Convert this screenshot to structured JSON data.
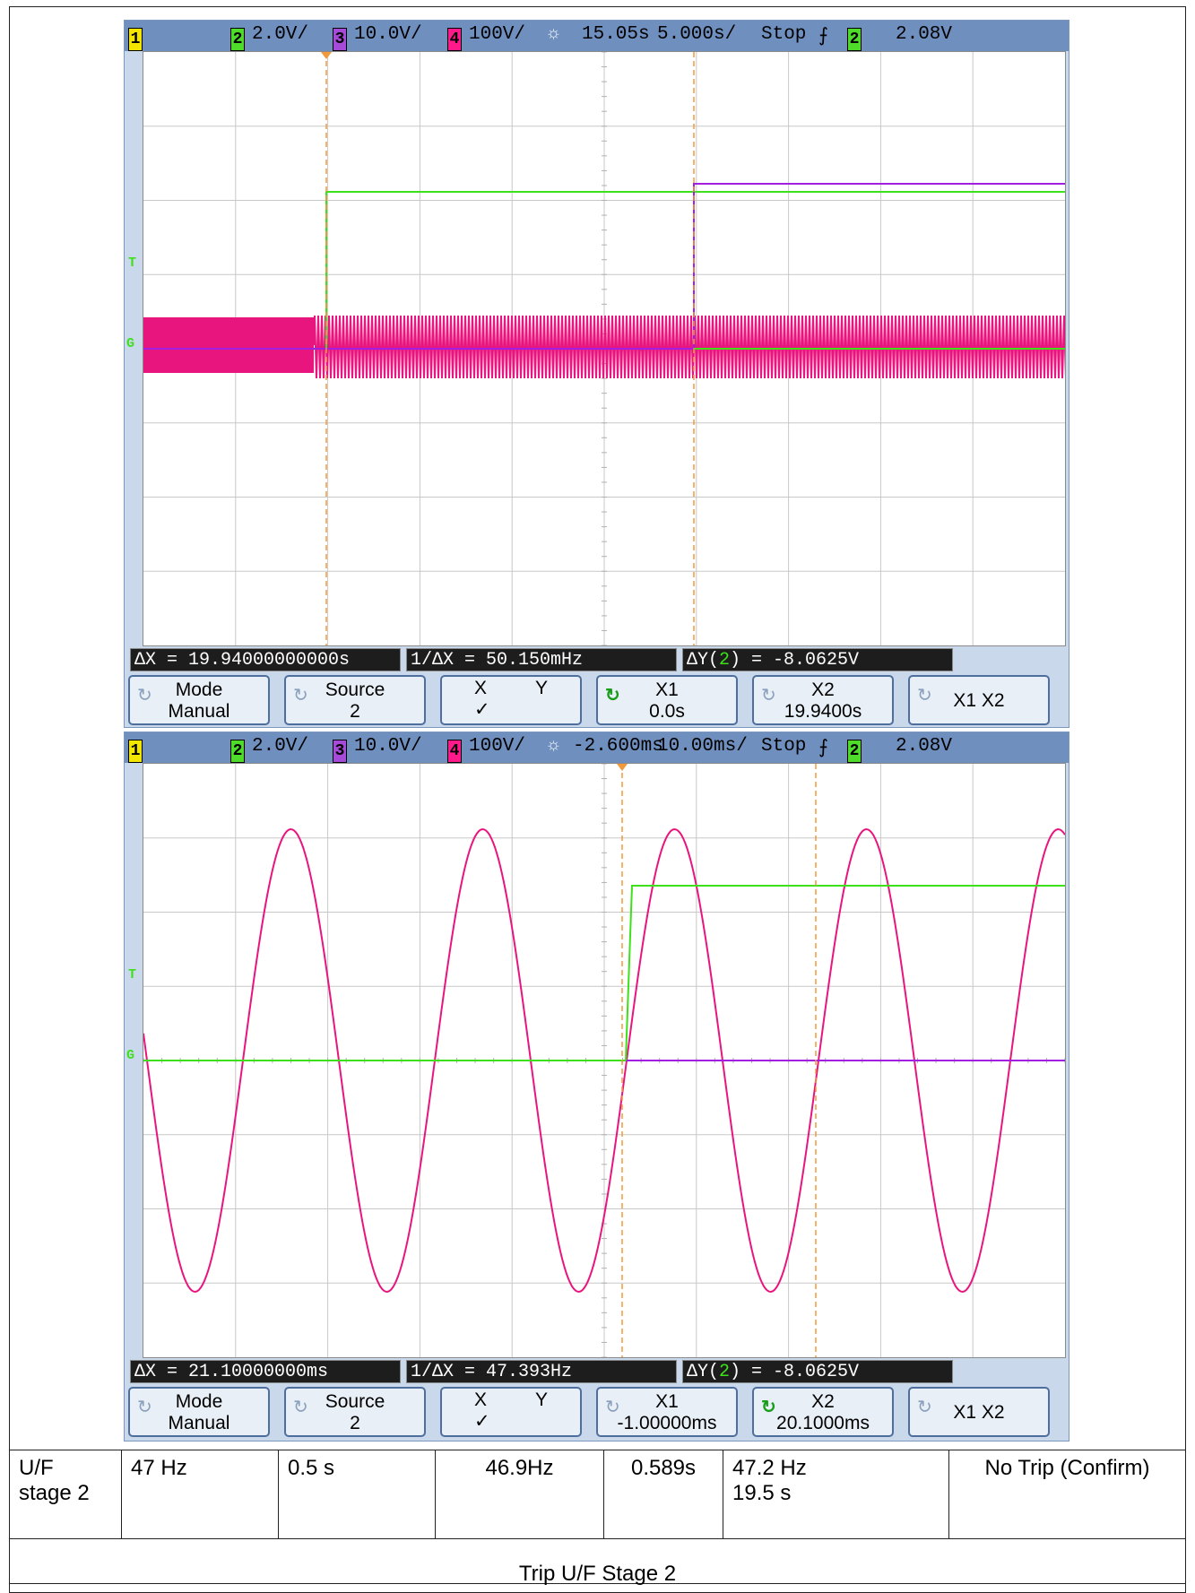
{
  "scopes": [
    {
      "status": {
        "ch1": "1",
        "ch2": "2",
        "ch2_scale": "2.0V/",
        "ch3": "3",
        "ch3_scale": "10.0V/",
        "ch4": "4",
        "ch4_scale": "100V/",
        "time_ref": "15.05s",
        "time_scale": "5.000s/",
        "run_state": "Stop",
        "trig_slope": "⨍",
        "trig_ch": "2",
        "trig_level": "2.08V"
      },
      "markers": {
        "trigger": "T",
        "ground": "G"
      },
      "readouts": {
        "dx": "ΔX = 19.94000000000s",
        "inv_dx": "1/ΔX = 50.150mHz",
        "dy_prefix": "ΔY(",
        "dy_ch": "2",
        "dy_suffix": ") = -8.0625V"
      },
      "softkeys": {
        "mode": [
          "Mode",
          "Manual"
        ],
        "source": [
          "Source",
          "2"
        ],
        "x": "X",
        "y": "Y",
        "check": "✓",
        "x1": [
          "X1",
          "0.0s"
        ],
        "x2": [
          "X2",
          "19.9400s"
        ],
        "x1x2": "X1 X2",
        "active": "x1"
      }
    },
    {
      "status": {
        "ch1": "1",
        "ch2": "2",
        "ch2_scale": "2.0V/",
        "ch3": "3",
        "ch3_scale": "10.0V/",
        "ch4": "4",
        "ch4_scale": "100V/",
        "time_ref": "-2.600ms",
        "time_scale": "10.00ms/",
        "run_state": "Stop",
        "trig_slope": "⨍",
        "trig_ch": "2",
        "trig_level": "2.08V"
      },
      "markers": {
        "trigger": "T",
        "ground": "G"
      },
      "readouts": {
        "dx": "ΔX = 21.10000000ms",
        "inv_dx": "1/ΔX = 47.393Hz",
        "dy_prefix": "ΔY(",
        "dy_ch": "2",
        "dy_suffix": ") = -8.0625V"
      },
      "softkeys": {
        "mode": [
          "Mode",
          "Manual"
        ],
        "source": [
          "Source",
          "2"
        ],
        "x": "X",
        "y": "Y",
        "check": "✓",
        "x1": [
          "X1",
          "-1.00000ms"
        ],
        "x2": [
          "X2",
          "20.1000ms"
        ],
        "x1x2": "X1 X2",
        "active": "x2"
      }
    }
  ],
  "table": {
    "row1": [
      "U/F stage 2",
      "47 Hz",
      "0.5 s",
      "46.9Hz",
      "0.589s",
      "47.2 Hz",
      "19.5 s",
      "No Trip (Confirm)"
    ],
    "row2": "Trip U/F Stage 2"
  },
  "colors": {
    "ch2_trace": "#3ee01c",
    "ch3_trace": "#a21fe0",
    "ch4_trace": "#e8157f",
    "cursor": "#f09a3c",
    "grid": "#c8c8c8"
  }
}
